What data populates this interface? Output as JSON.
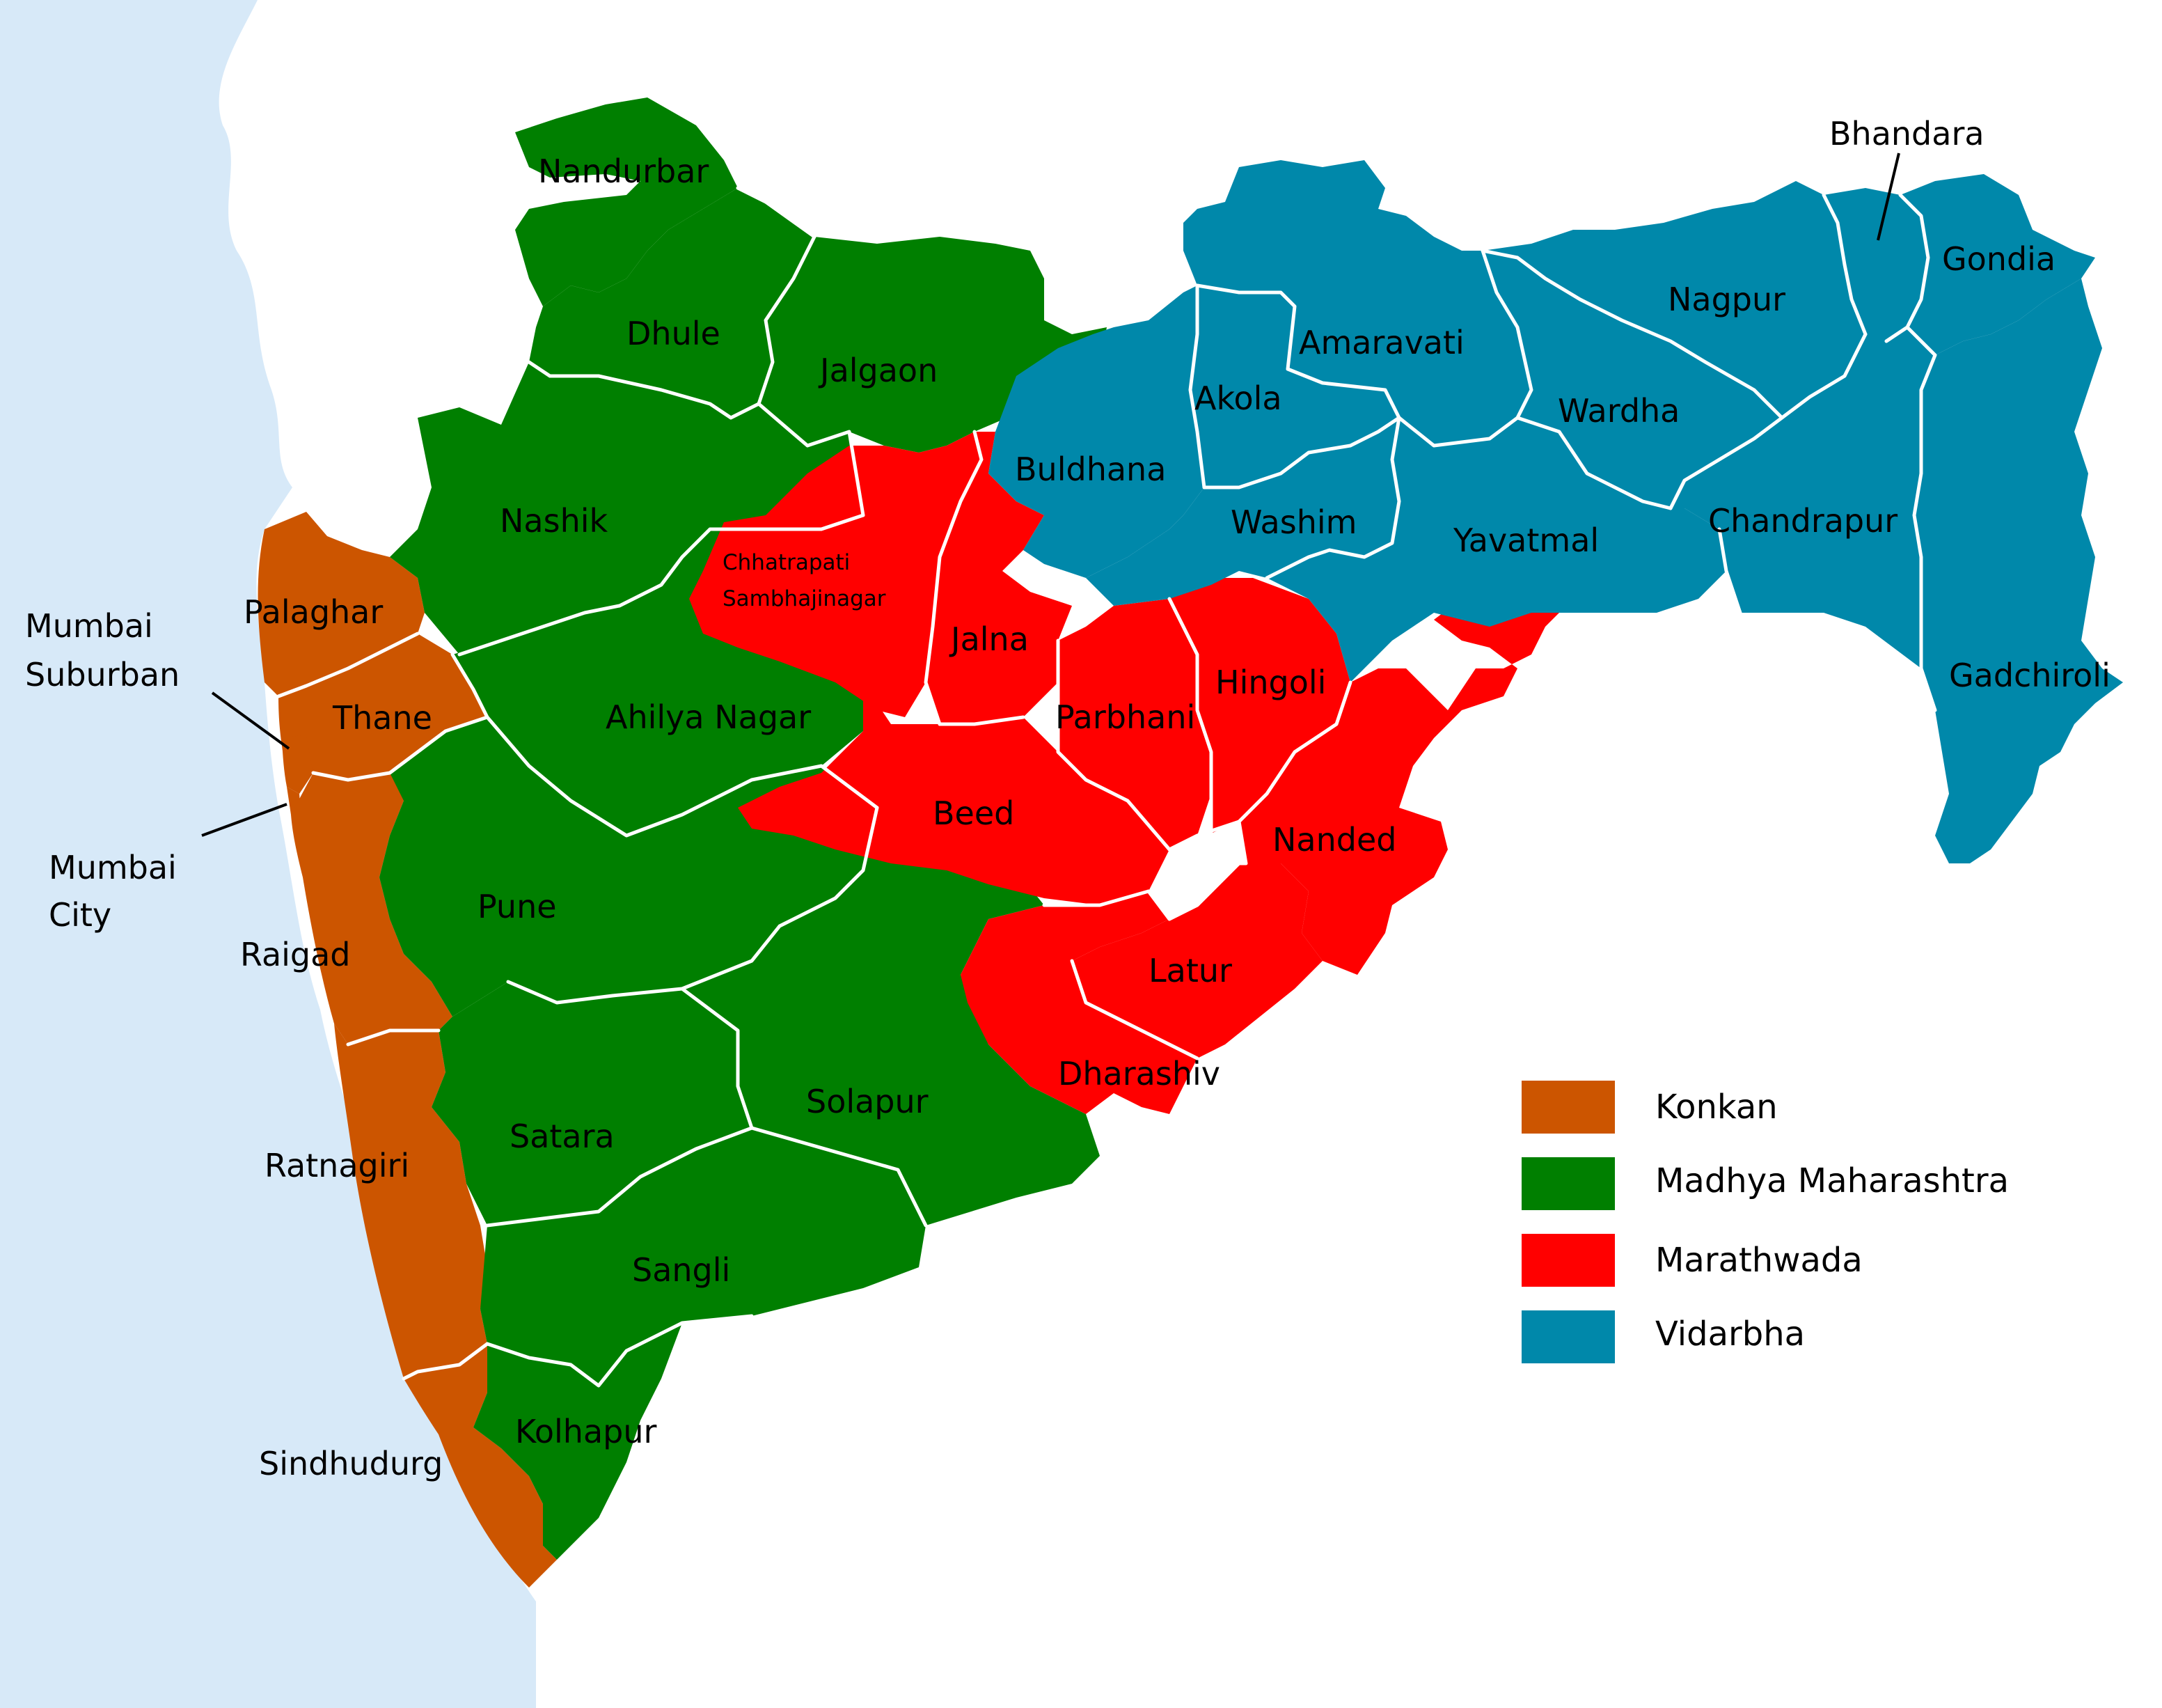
{
  "colors": {
    "sea": "#d7e9f8",
    "konkan": "#cc5500",
    "madhya": "#007f00",
    "marathwada": "#ff0000",
    "vidarbha": "#0088aa",
    "border": "#ffffff"
  },
  "districts": {
    "nandurbar": "Nandurbar",
    "dhule": "Dhule",
    "jalgaon": "Jalgaon",
    "nashik": "Nashik",
    "palaghar": "Palaghar",
    "thane": "Thane",
    "mumbai_suburban_1": "Mumbai",
    "mumbai_suburban_2": "Suburban",
    "mumbai_city_1": "Mumbai",
    "mumbai_city_2": "City",
    "raigad": "Raigad",
    "ratnagiri": "Ratnagiri",
    "sindhudurg": "Sindhudurg",
    "pune": "Pune",
    "ahilya_nagar": "Ahilya Nagar",
    "satara": "Satara",
    "sangli": "Sangli",
    "kolhapur": "Kolhapur",
    "solapur": "Solapur",
    "chhatrapati_1": "Chhatrapati",
    "chhatrapati_2": "Sambhajinagar",
    "jalna": "Jalna",
    "beed": "Beed",
    "parbhani": "Parbhani",
    "hingoli": "Hingoli",
    "nanded": "Nanded",
    "latur": "Latur",
    "dharashiv": "Dharashiv",
    "buldhana": "Buldhana",
    "akola": "Akola",
    "washim": "Washim",
    "amaravati": "Amaravati",
    "yavatmal": "Yavatmal",
    "wardha": "Wardha",
    "nagpur": "Nagpur",
    "bhandara": "Bhandara",
    "gondia": "Gondia",
    "chandrapur": "Chandrapur",
    "gadchiroli": "Gadchiroli"
  },
  "legend": [
    {
      "label": "Konkan",
      "color": "#cc5500"
    },
    {
      "label": "Madhya Maharashtra",
      "color": "#007f00"
    },
    {
      "label": "Marathwada",
      "color": "#ff0000"
    },
    {
      "label": "Vidarbha",
      "color": "#0088aa"
    }
  ]
}
